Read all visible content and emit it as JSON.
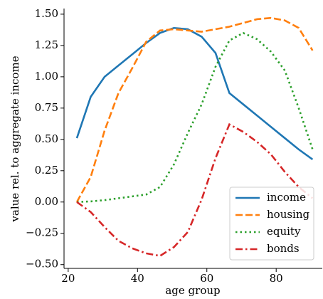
{
  "chart_data": {
    "type": "line",
    "x_label": "age group",
    "y_label": "value rel. to aggregate income",
    "x": [
      22.5,
      26.5,
      30.5,
      34.5,
      38.5,
      42.5,
      46.5,
      50.5,
      54.5,
      58.5,
      62.5,
      66.5,
      70.5,
      74.5,
      78.5,
      82.5,
      86.5,
      90.5
    ],
    "series": [
      {
        "name": "income",
        "color": "#1f77b4",
        "style": "solid",
        "values": [
          0.51,
          0.84,
          1.0,
          1.09,
          1.18,
          1.27,
          1.35,
          1.39,
          1.38,
          1.32,
          1.19,
          0.87,
          0.78,
          0.69,
          0.6,
          0.51,
          0.42,
          0.34
        ]
      },
      {
        "name": "housing",
        "color": "#ff7f0e",
        "style": "dashed",
        "values": [
          0.0,
          0.2,
          0.57,
          0.87,
          1.07,
          1.28,
          1.37,
          1.38,
          1.37,
          1.36,
          1.38,
          1.4,
          1.43,
          1.46,
          1.47,
          1.45,
          1.39,
          1.21
        ]
      },
      {
        "name": "equity",
        "color": "#2ca02c",
        "style": "dotted",
        "values": [
          0.0,
          0.005,
          0.015,
          0.03,
          0.045,
          0.06,
          0.12,
          0.3,
          0.55,
          0.78,
          1.08,
          1.29,
          1.35,
          1.3,
          1.2,
          1.05,
          0.75,
          0.42
        ]
      },
      {
        "name": "bonds",
        "color": "#d62728",
        "style": "dashdot",
        "values": [
          0.0,
          -0.08,
          -0.2,
          -0.31,
          -0.37,
          -0.41,
          -0.43,
          -0.36,
          -0.24,
          0.02,
          0.35,
          0.62,
          0.56,
          0.48,
          0.38,
          0.24,
          0.12,
          0.03
        ]
      }
    ],
    "xlim": [
      18.8,
      93.3
    ],
    "ylim": [
      -0.53,
      1.545
    ],
    "xticks": [
      20,
      40,
      60,
      80
    ],
    "yticks": [
      {
        "value": -0.5,
        "label": "−0.50"
      },
      {
        "value": -0.25,
        "label": "−0.25"
      },
      {
        "value": 0,
        "label": "0.00"
      },
      {
        "value": 0.25,
        "label": "0.25"
      },
      {
        "value": 0.5,
        "label": "0.50"
      },
      {
        "value": 0.75,
        "label": "0.75"
      },
      {
        "value": 1.0,
        "label": "1.00"
      },
      {
        "value": 1.25,
        "label": "1.25"
      },
      {
        "value": 1.5,
        "label": "1.50"
      }
    ],
    "legend": "lower right"
  }
}
